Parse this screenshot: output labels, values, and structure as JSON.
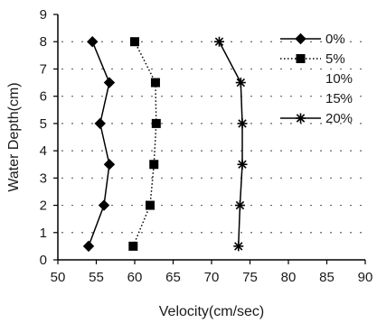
{
  "chart_data": {
    "type": "line",
    "title": "",
    "xlabel": "Velocity(cm/sec)",
    "ylabel": "Water Depth(cm)",
    "xlim": [
      50,
      90
    ],
    "ylim": [
      0,
      9
    ],
    "x_ticks": [
      50,
      55,
      60,
      65,
      70,
      75,
      80,
      85,
      90
    ],
    "y_ticks": [
      0,
      1,
      2,
      3,
      4,
      5,
      6,
      7,
      8,
      9
    ],
    "grid": "dotted horizontal",
    "legend_position": "top-right",
    "series": [
      {
        "name": "0%",
        "marker": "diamond",
        "line_style": "solid",
        "color": "#000000",
        "points": [
          {
            "x": 54.0,
            "y": 0.5
          },
          {
            "x": 56.0,
            "y": 2.0
          },
          {
            "x": 56.7,
            "y": 3.5
          },
          {
            "x": 55.5,
            "y": 5.0
          },
          {
            "x": 56.7,
            "y": 6.5
          },
          {
            "x": 54.5,
            "y": 8.0
          }
        ]
      },
      {
        "name": "5%",
        "marker": "square",
        "line_style": "dotted",
        "color": "#000000",
        "points": [
          {
            "x": 59.8,
            "y": 0.5
          },
          {
            "x": 62.0,
            "y": 2.0
          },
          {
            "x": 62.5,
            "y": 3.5
          },
          {
            "x": 62.8,
            "y": 5.0
          },
          {
            "x": 62.7,
            "y": 6.5
          },
          {
            "x": 60.0,
            "y": 8.0
          }
        ]
      },
      {
        "name": "10%",
        "marker": "none",
        "line_style": "none",
        "color": "#000000",
        "points": []
      },
      {
        "name": "15%",
        "marker": "none",
        "line_style": "none",
        "color": "#000000",
        "points": []
      },
      {
        "name": "20%",
        "marker": "asterisk",
        "line_style": "solid",
        "color": "#000000",
        "points": [
          {
            "x": 73.5,
            "y": 0.5
          },
          {
            "x": 73.7,
            "y": 2.0
          },
          {
            "x": 74.0,
            "y": 3.5
          },
          {
            "x": 74.0,
            "y": 5.0
          },
          {
            "x": 73.8,
            "y": 6.5
          },
          {
            "x": 71.0,
            "y": 8.0
          }
        ]
      }
    ],
    "dotted_gridlines_y": [
      1,
      2,
      3,
      4,
      5,
      6,
      7,
      8
    ]
  }
}
